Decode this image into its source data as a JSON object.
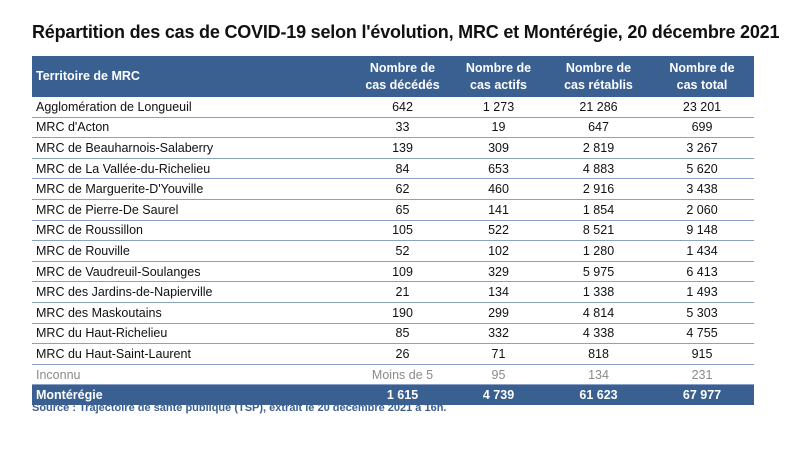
{
  "title": "Répartition des cas de COVID-19 selon l'évolution, MRC et Montérégie, 20 décembre 2021",
  "headers": {
    "territory": "Territoire de MRC",
    "deaths": [
      "Nombre de",
      "cas décédés"
    ],
    "active": [
      "Nombre de",
      "cas actifs"
    ],
    "recovered": [
      "Nombre de",
      "cas rétablis"
    ],
    "total": [
      "Nombre de",
      "cas total"
    ]
  },
  "rows": [
    {
      "name": "Agglomération de Longueuil",
      "deaths": "642",
      "active": "1 273",
      "recovered": "21 286",
      "total": "23 201"
    },
    {
      "name": "MRC d'Acton",
      "deaths": "33",
      "active": "19",
      "recovered": "647",
      "total": "699"
    },
    {
      "name": "MRC de Beauharnois-Salaberry",
      "deaths": "139",
      "active": "309",
      "recovered": "2 819",
      "total": "3 267"
    },
    {
      "name": "MRC de La Vallée-du-Richelieu",
      "deaths": "84",
      "active": "653",
      "recovered": "4 883",
      "total": "5 620"
    },
    {
      "name": "MRC de Marguerite-D'Youville",
      "deaths": "62",
      "active": "460",
      "recovered": "2 916",
      "total": "3 438"
    },
    {
      "name": "MRC de Pierre-De Saurel",
      "deaths": "65",
      "active": "141",
      "recovered": "1 854",
      "total": "2 060"
    },
    {
      "name": "MRC de Roussillon",
      "deaths": "105",
      "active": "522",
      "recovered": "8 521",
      "total": "9 148"
    },
    {
      "name": "MRC de Rouville",
      "deaths": "52",
      "active": "102",
      "recovered": "1 280",
      "total": "1 434"
    },
    {
      "name": "MRC de Vaudreuil-Soulanges",
      "deaths": "109",
      "active": "329",
      "recovered": "5 975",
      "total": "6 413"
    },
    {
      "name": "MRC des Jardins-de-Napierville",
      "deaths": "21",
      "active": "134",
      "recovered": "1 338",
      "total": "1 493"
    },
    {
      "name": "MRC des Maskoutains",
      "deaths": "190",
      "active": "299",
      "recovered": "4 814",
      "total": "5 303"
    },
    {
      "name": "MRC du Haut-Richelieu",
      "deaths": "85",
      "active": "332",
      "recovered": "4 338",
      "total": "4 755"
    },
    {
      "name": "MRC du Haut-Saint-Laurent",
      "deaths": "26",
      "active": "71",
      "recovered": "818",
      "total": "915"
    }
  ],
  "unknown": {
    "name": "Inconnu",
    "deaths": "Moins de 5",
    "active": "95",
    "recovered": "134",
    "total": "231"
  },
  "total_row": {
    "name": "Montérégie",
    "deaths": "1 615",
    "active": "4 739",
    "recovered": "61 623",
    "total": "67 977"
  },
  "source": "Source : Trajectoire de santé publique (TSP), extrait le 20 décembre 2021 à 16h.",
  "colors": {
    "header_bg": "#3a5f91",
    "row_rule": "#8aa0c4",
    "muted_text": "#8a8a8a"
  }
}
